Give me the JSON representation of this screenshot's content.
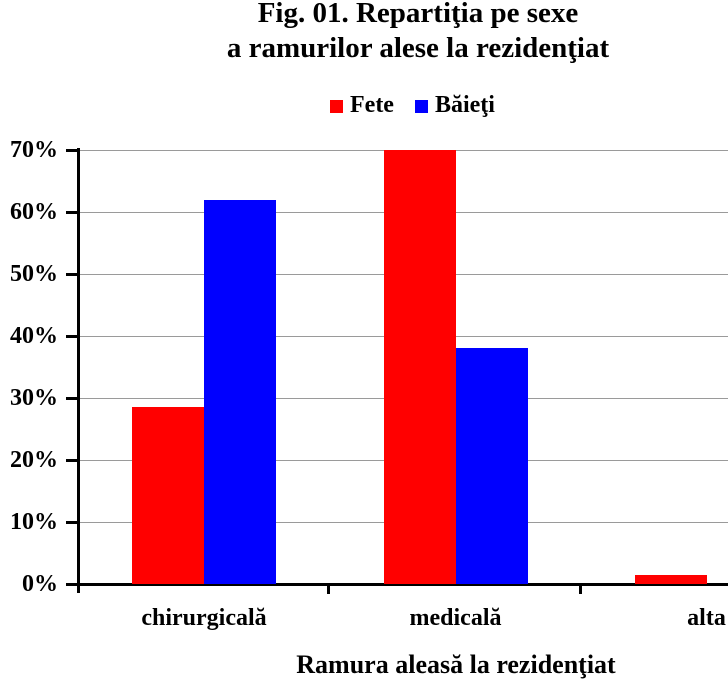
{
  "title": {
    "line1": "Fig. 01. Repartiţia pe sexe",
    "line2": "a ramurilor alese la rezidenţiat"
  },
  "legend": {
    "items": [
      {
        "label": "Fete",
        "color": "#ff0000"
      },
      {
        "label": "Băieţi",
        "color": "#0000ff"
      }
    ]
  },
  "chart_data": {
    "type": "bar",
    "title": "Fig. 01. Repartiţia pe sexe a ramurilor alese la rezidenţiat",
    "categories": [
      "chirurgicală",
      "medicală",
      "alta"
    ],
    "series": [
      {
        "name": "Fete",
        "color": "#ff0000",
        "values": [
          28.5,
          70,
          1.5
        ]
      },
      {
        "name": "Băieţi",
        "color": "#0000ff",
        "values": [
          62,
          38,
          0
        ]
      }
    ],
    "xlabel": "Ramura aleasă la rezidenţiat",
    "ylabel": "",
    "ylim": [
      0,
      70
    ],
    "ytick_step": 10,
    "ytick_labels": [
      "0%",
      "10%",
      "20%",
      "30%",
      "40%",
      "50%",
      "60%",
      "70%"
    ],
    "grid": true,
    "gridline_color": "#9a9a9a",
    "legend_position": "top-center"
  }
}
